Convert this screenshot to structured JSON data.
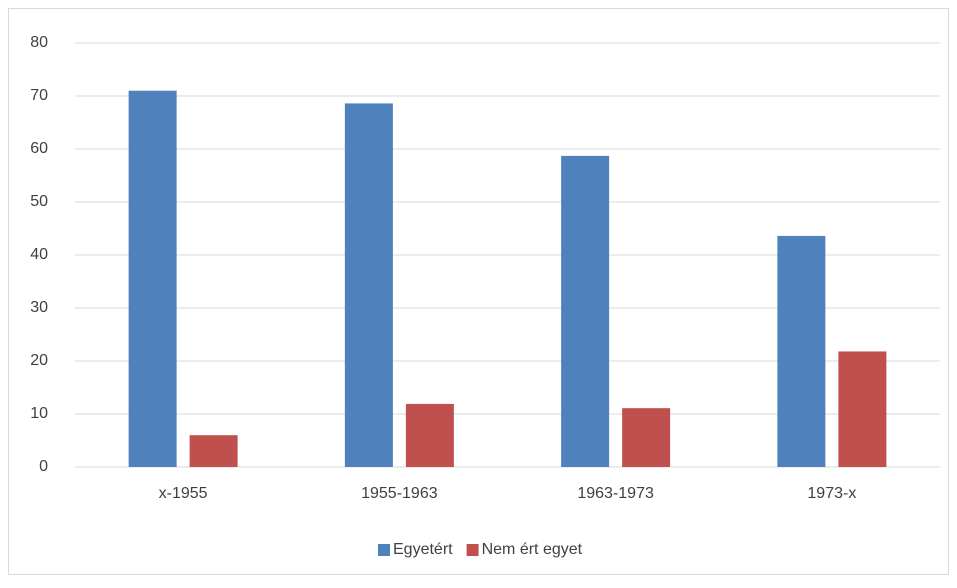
{
  "chart_data": {
    "type": "bar",
    "categories": [
      "x-1955",
      "1955-1963",
      "1963-1973",
      "1973-x"
    ],
    "series": [
      {
        "name": "Egyetért",
        "color": "#4f81bd",
        "values": [
          71.0,
          68.6,
          58.7,
          43.6
        ]
      },
      {
        "name": "Nem ért egyet",
        "color": "#c0504d",
        "values": [
          6.0,
          11.9,
          11.1,
          21.8
        ]
      }
    ],
    "ylim": [
      0,
      80
    ],
    "yticks": [
      0,
      10,
      20,
      30,
      40,
      50,
      60,
      70,
      80
    ],
    "grid": true,
    "legend": "bottom"
  }
}
